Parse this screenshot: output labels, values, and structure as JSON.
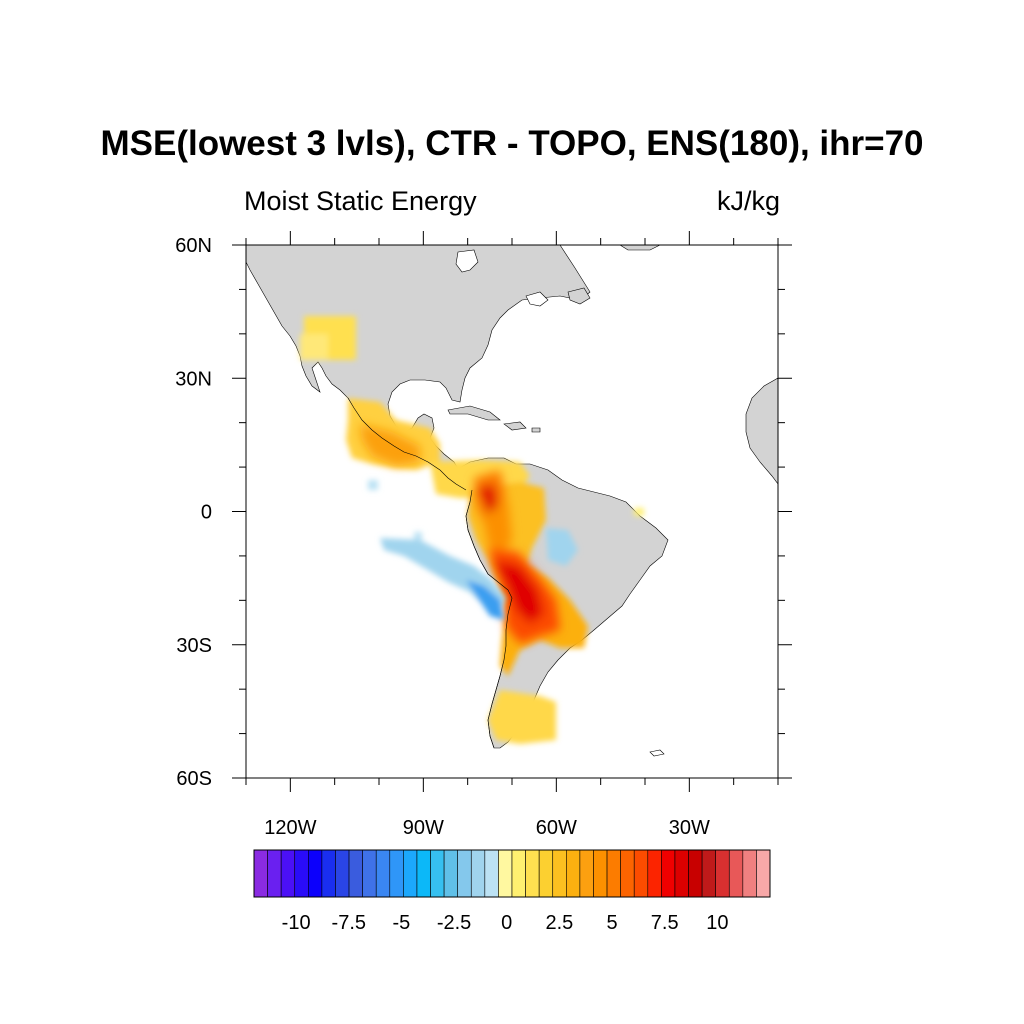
{
  "title": "MSE(lowest 3 lvls), CTR - TOPO, ENS(180), ihr=70",
  "subtitle_left": "Moist Static Energy",
  "subtitle_right": "kJ/kg",
  "map": {
    "region": "Americas",
    "lat_range": [
      -60,
      60
    ],
    "lon_range": [
      -130,
      -10
    ],
    "land_color": "#d3d3d3",
    "ocean_color": "#ffffff",
    "lat_ticks": [
      {
        "lat": 60,
        "label": "60N"
      },
      {
        "lat": 30,
        "label": "30N"
      },
      {
        "lat": 0,
        "label": "0"
      },
      {
        "lat": -30,
        "label": "30S"
      },
      {
        "lat": -60,
        "label": "60S"
      }
    ],
    "lon_ticks": [
      {
        "lon": -120,
        "label": "120W"
      },
      {
        "lon": -90,
        "label": "90W"
      },
      {
        "lon": -60,
        "label": "60W"
      },
      {
        "lon": -30,
        "label": "30W"
      }
    ]
  },
  "colorbar": {
    "colors": [
      "#8a2be2",
      "#6a20f0",
      "#4b10f6",
      "#2a0cf8",
      "#0c00fc",
      "#1a2ef0",
      "#2a45e6",
      "#3a5cde",
      "#3f72e8",
      "#3a86f2",
      "#2f96f8",
      "#1ca8fc",
      "#0cb8f8",
      "#36c0f0",
      "#60c0e8",
      "#84c8ec",
      "#a0d4ee",
      "#bce2f4",
      "#fff8a0",
      "#fff070",
      "#ffe050",
      "#fcd030",
      "#fcc020",
      "#fcb010",
      "#fca010",
      "#fc9000",
      "#fc7c00",
      "#fc6400",
      "#fc4c00",
      "#fc2400",
      "#f00000",
      "#dc0000",
      "#c80000",
      "#c01a1a",
      "#d83030",
      "#e85858",
      "#f08080",
      "#f8a8a8"
    ],
    "labels": [
      "-10",
      "-7.5",
      "-5",
      "-2.5",
      "0",
      "2.5",
      "5",
      "7.5",
      "10"
    ],
    "label_values": [
      -10,
      -7.5,
      -5,
      -2.5,
      0,
      2.5,
      5,
      7.5,
      10
    ],
    "min": -12,
    "max": 12.5,
    "step": 0.5
  }
}
